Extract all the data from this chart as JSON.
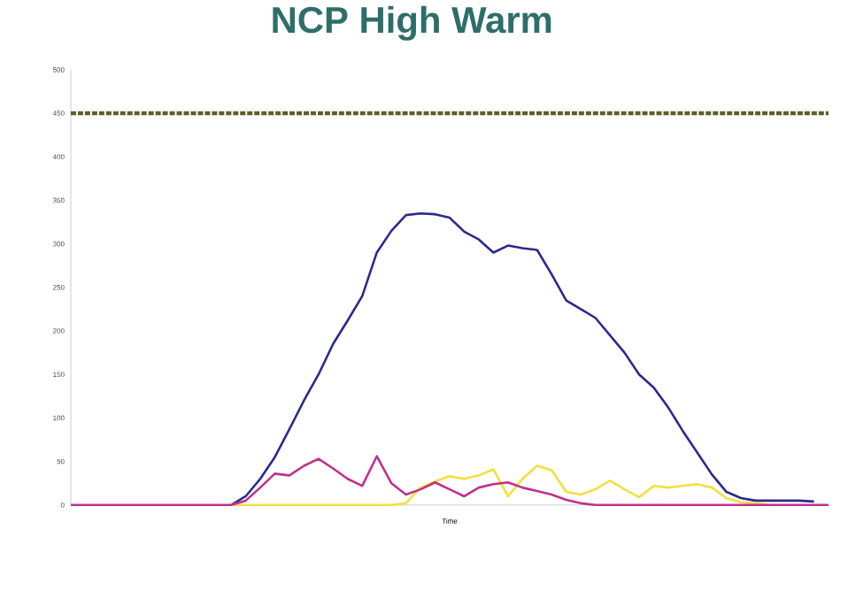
{
  "chart_data": {
    "type": "line",
    "title": "NCP High Warm",
    "xlabel": "Time",
    "categories": [
      null,
      null,
      null,
      null,
      null,
      null,
      null,
      null,
      null,
      null,
      null,
      null,
      null,
      null,
      null,
      null,
      null,
      null,
      null,
      null,
      null,
      null,
      null,
      null,
      null,
      null,
      null,
      null,
      null,
      null,
      null,
      null,
      null,
      null,
      null,
      null,
      null,
      null,
      null,
      null,
      null,
      null,
      null,
      null,
      null,
      null,
      null,
      null,
      null,
      null,
      null,
      null,
      null
    ],
    "series": [
      {
        "color": "#2a2a8c",
        "values": [
          null,
          null,
          null,
          null,
          null,
          null,
          null,
          null,
          null,
          null,
          null,
          0,
          10,
          30,
          55,
          87,
          120,
          150,
          185,
          212,
          240,
          290,
          315,
          333,
          335,
          334,
          330,
          314,
          305,
          290,
          298,
          295,
          293,
          265,
          235,
          225,
          215,
          195,
          175,
          150,
          135,
          112,
          85,
          60,
          35,
          15,
          8,
          5,
          5,
          5,
          5,
          4,
          null
        ]
      },
      {
        "color": "#f0e040",
        "values": [
          null,
          null,
          null,
          null,
          null,
          null,
          null,
          null,
          null,
          null,
          null,
          0,
          0,
          0,
          0,
          0,
          0,
          0,
          0,
          0,
          0,
          0,
          0,
          2,
          20,
          27,
          33,
          30,
          34,
          41,
          10,
          30,
          45,
          40,
          15,
          12,
          18,
          28,
          18,
          9,
          22,
          20,
          22,
          24,
          20,
          8,
          3,
          2,
          0,
          null,
          null,
          null,
          null
        ]
      },
      {
        "color": "#c0308c",
        "values": [
          0,
          0,
          0,
          0,
          0,
          0,
          0,
          0,
          0,
          0,
          0,
          0,
          5,
          20,
          36,
          34,
          45,
          53,
          42,
          30,
          22,
          56,
          25,
          12,
          18,
          26,
          18,
          10,
          20,
          24,
          26,
          20,
          16,
          12,
          6,
          2,
          0,
          0,
          0,
          0,
          0,
          0,
          0,
          0,
          0,
          0,
          0,
          0,
          0,
          0,
          0,
          0,
          0
        ]
      }
    ],
    "ylim": [
      0,
      500
    ],
    "yticks": [
      0,
      50,
      100,
      150,
      200,
      250,
      300,
      350,
      400,
      450,
      500
    ],
    "ref_lines": [
      {
        "axis": "y",
        "value": 450,
        "color": "#5e5e2a",
        "line_style": "dashed"
      }
    ],
    "grid": false,
    "legend": false
  }
}
